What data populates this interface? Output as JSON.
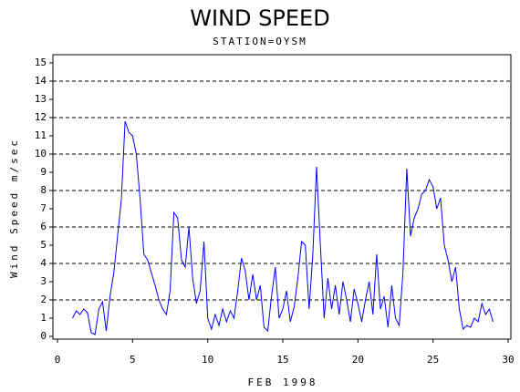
{
  "chart_data": {
    "type": "line",
    "title": "WIND SPEED",
    "subtitle": "STATION=OYSM",
    "x_label": "FEB 1998",
    "y_label": "Wind Speed m/sec",
    "xlim": [
      0,
      30
    ],
    "xticks": [
      0,
      5,
      10,
      15,
      20,
      25,
      30
    ],
    "ylim": [
      0,
      15
    ],
    "yticks": [
      0,
      1,
      2,
      3,
      4,
      5,
      6,
      7,
      8,
      9,
      10,
      11,
      12,
      13,
      14,
      15
    ],
    "grid_y": [
      2,
      4,
      6,
      8,
      10,
      12,
      14
    ],
    "x": [
      1,
      1.25,
      1.5,
      1.75,
      2,
      2.25,
      2.5,
      2.75,
      3,
      3.25,
      3.5,
      3.75,
      4,
      4.25,
      4.5,
      4.75,
      5,
      5.25,
      5.5,
      5.75,
      6,
      6.25,
      6.5,
      6.75,
      7,
      7.25,
      7.5,
      7.75,
      8,
      8.25,
      8.5,
      8.75,
      9,
      9.25,
      9.5,
      9.75,
      10,
      10.25,
      10.5,
      10.75,
      11,
      11.25,
      11.5,
      11.75,
      12,
      12.25,
      12.5,
      12.75,
      13,
      13.25,
      13.5,
      13.75,
      14,
      14.25,
      14.5,
      14.75,
      15,
      15.25,
      15.5,
      15.75,
      16,
      16.25,
      16.5,
      16.75,
      17,
      17.25,
      17.5,
      17.75,
      18,
      18.25,
      18.5,
      18.75,
      19,
      19.25,
      19.5,
      19.75,
      20,
      20.25,
      20.5,
      20.75,
      21,
      21.25,
      21.5,
      21.75,
      22,
      22.25,
      22.5,
      22.75,
      23,
      23.25,
      23.5,
      23.75,
      24,
      24.25,
      24.5,
      24.75,
      25,
      25.25,
      25.5,
      25.75,
      26,
      26.25,
      26.5,
      26.75,
      27,
      27.25,
      27.5,
      27.75,
      28,
      28.25,
      28.5,
      28.75,
      29
    ],
    "series": [
      {
        "name": "Wind Speed",
        "color": "#0000ff",
        "values": [
          1.0,
          1.4,
          1.2,
          1.5,
          1.3,
          0.2,
          0.1,
          1.5,
          1.9,
          0.3,
          2.2,
          3.5,
          5.5,
          7.5,
          11.8,
          11.2,
          11.0,
          10.0,
          7.5,
          4.5,
          4.2,
          3.5,
          2.8,
          2.0,
          1.5,
          1.2,
          2.5,
          6.8,
          6.5,
          4.2,
          3.8,
          6.0,
          3.2,
          1.8,
          2.5,
          5.2,
          1.0,
          0.4,
          1.2,
          0.6,
          1.5,
          0.8,
          1.4,
          1.0,
          2.5,
          4.3,
          3.6,
          2.0,
          3.4,
          2.0,
          2.8,
          0.5,
          0.3,
          2.2,
          3.8,
          1.0,
          1.5,
          2.5,
          0.8,
          1.6,
          3.2,
          5.2,
          5.0,
          1.5,
          4.5,
          9.3,
          5.0,
          1.0,
          3.2,
          1.5,
          2.8,
          1.2,
          3.0,
          2.0,
          0.8,
          2.6,
          1.8,
          0.8,
          2.0,
          3.0,
          1.2,
          4.5,
          1.5,
          2.2,
          0.5,
          2.8,
          1.0,
          0.6,
          3.5,
          9.2,
          5.5,
          6.5,
          7.0,
          7.8,
          8.0,
          8.6,
          8.2,
          7.0,
          7.6,
          5.0,
          4.2,
          3.0,
          3.8,
          1.5,
          0.4,
          0.6,
          0.5,
          1.0,
          0.8,
          1.8,
          1.2,
          1.5,
          0.8
        ]
      }
    ]
  }
}
